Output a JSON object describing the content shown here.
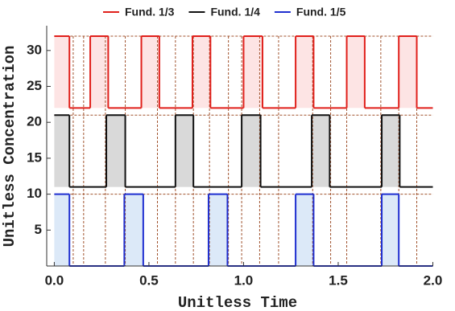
{
  "chart_data": {
    "type": "step",
    "xlabel": "Unitless Time",
    "ylabel": "Unitless Concentration",
    "xlim": [
      -0.04,
      2.0
    ],
    "ylim": [
      0,
      33
    ],
    "xticks": [
      {
        "value": 0,
        "label": "0.0"
      },
      {
        "value": 0.5,
        "label": "0.5"
      },
      {
        "value": 1,
        "label": "1.0"
      },
      {
        "value": 1.5,
        "label": "1.5"
      },
      {
        "value": 2,
        "label": "2.0"
      }
    ],
    "yticks": [
      5,
      10,
      15,
      20,
      25,
      30
    ],
    "reference_levels": [
      32,
      21,
      10
    ],
    "reference_x": [
      0.1,
      0.155,
      0.27,
      0.375,
      0.545,
      0.64,
      0.735,
      0.82,
      0.92,
      0.99,
      1.085,
      1.185,
      1.365,
      1.46,
      1.545,
      1.725,
      1.82,
      1.915
    ],
    "reference_color": "#a0522d",
    "series": [
      {
        "name": "Fund. 1/3",
        "color": "#e0201b",
        "fill": "#fde4e4",
        "x": [
          0,
          0.08,
          0.19,
          0.285,
          0.46,
          0.555,
          0.73,
          0.825,
          1.0,
          1.1,
          1.275,
          1.37,
          1.545,
          1.64,
          1.82,
          1.915
        ],
        "values": [
          32,
          22,
          32,
          22,
          32,
          22,
          32,
          22,
          32,
          22,
          32,
          22,
          32,
          22,
          32,
          22
        ]
      },
      {
        "name": "Fund. 1/4",
        "color": "#111111",
        "fill": "#d9d9d9",
        "x": [
          0,
          0.08,
          0.275,
          0.375,
          0.64,
          0.735,
          0.99,
          1.09,
          1.36,
          1.455,
          1.73,
          1.825
        ],
        "values": [
          21,
          11,
          21,
          11,
          21,
          11,
          21,
          11,
          21,
          11,
          21,
          11
        ]
      },
      {
        "name": "Fund. 1/5",
        "color": "#1f2fd0",
        "fill": "#dce9f8",
        "x": [
          0,
          0.08,
          0.37,
          0.47,
          0.815,
          0.915,
          1.275,
          1.37,
          1.73,
          1.82
        ],
        "values": [
          10,
          0,
          10,
          0,
          10,
          0,
          10,
          0,
          10,
          0
        ]
      }
    ]
  }
}
